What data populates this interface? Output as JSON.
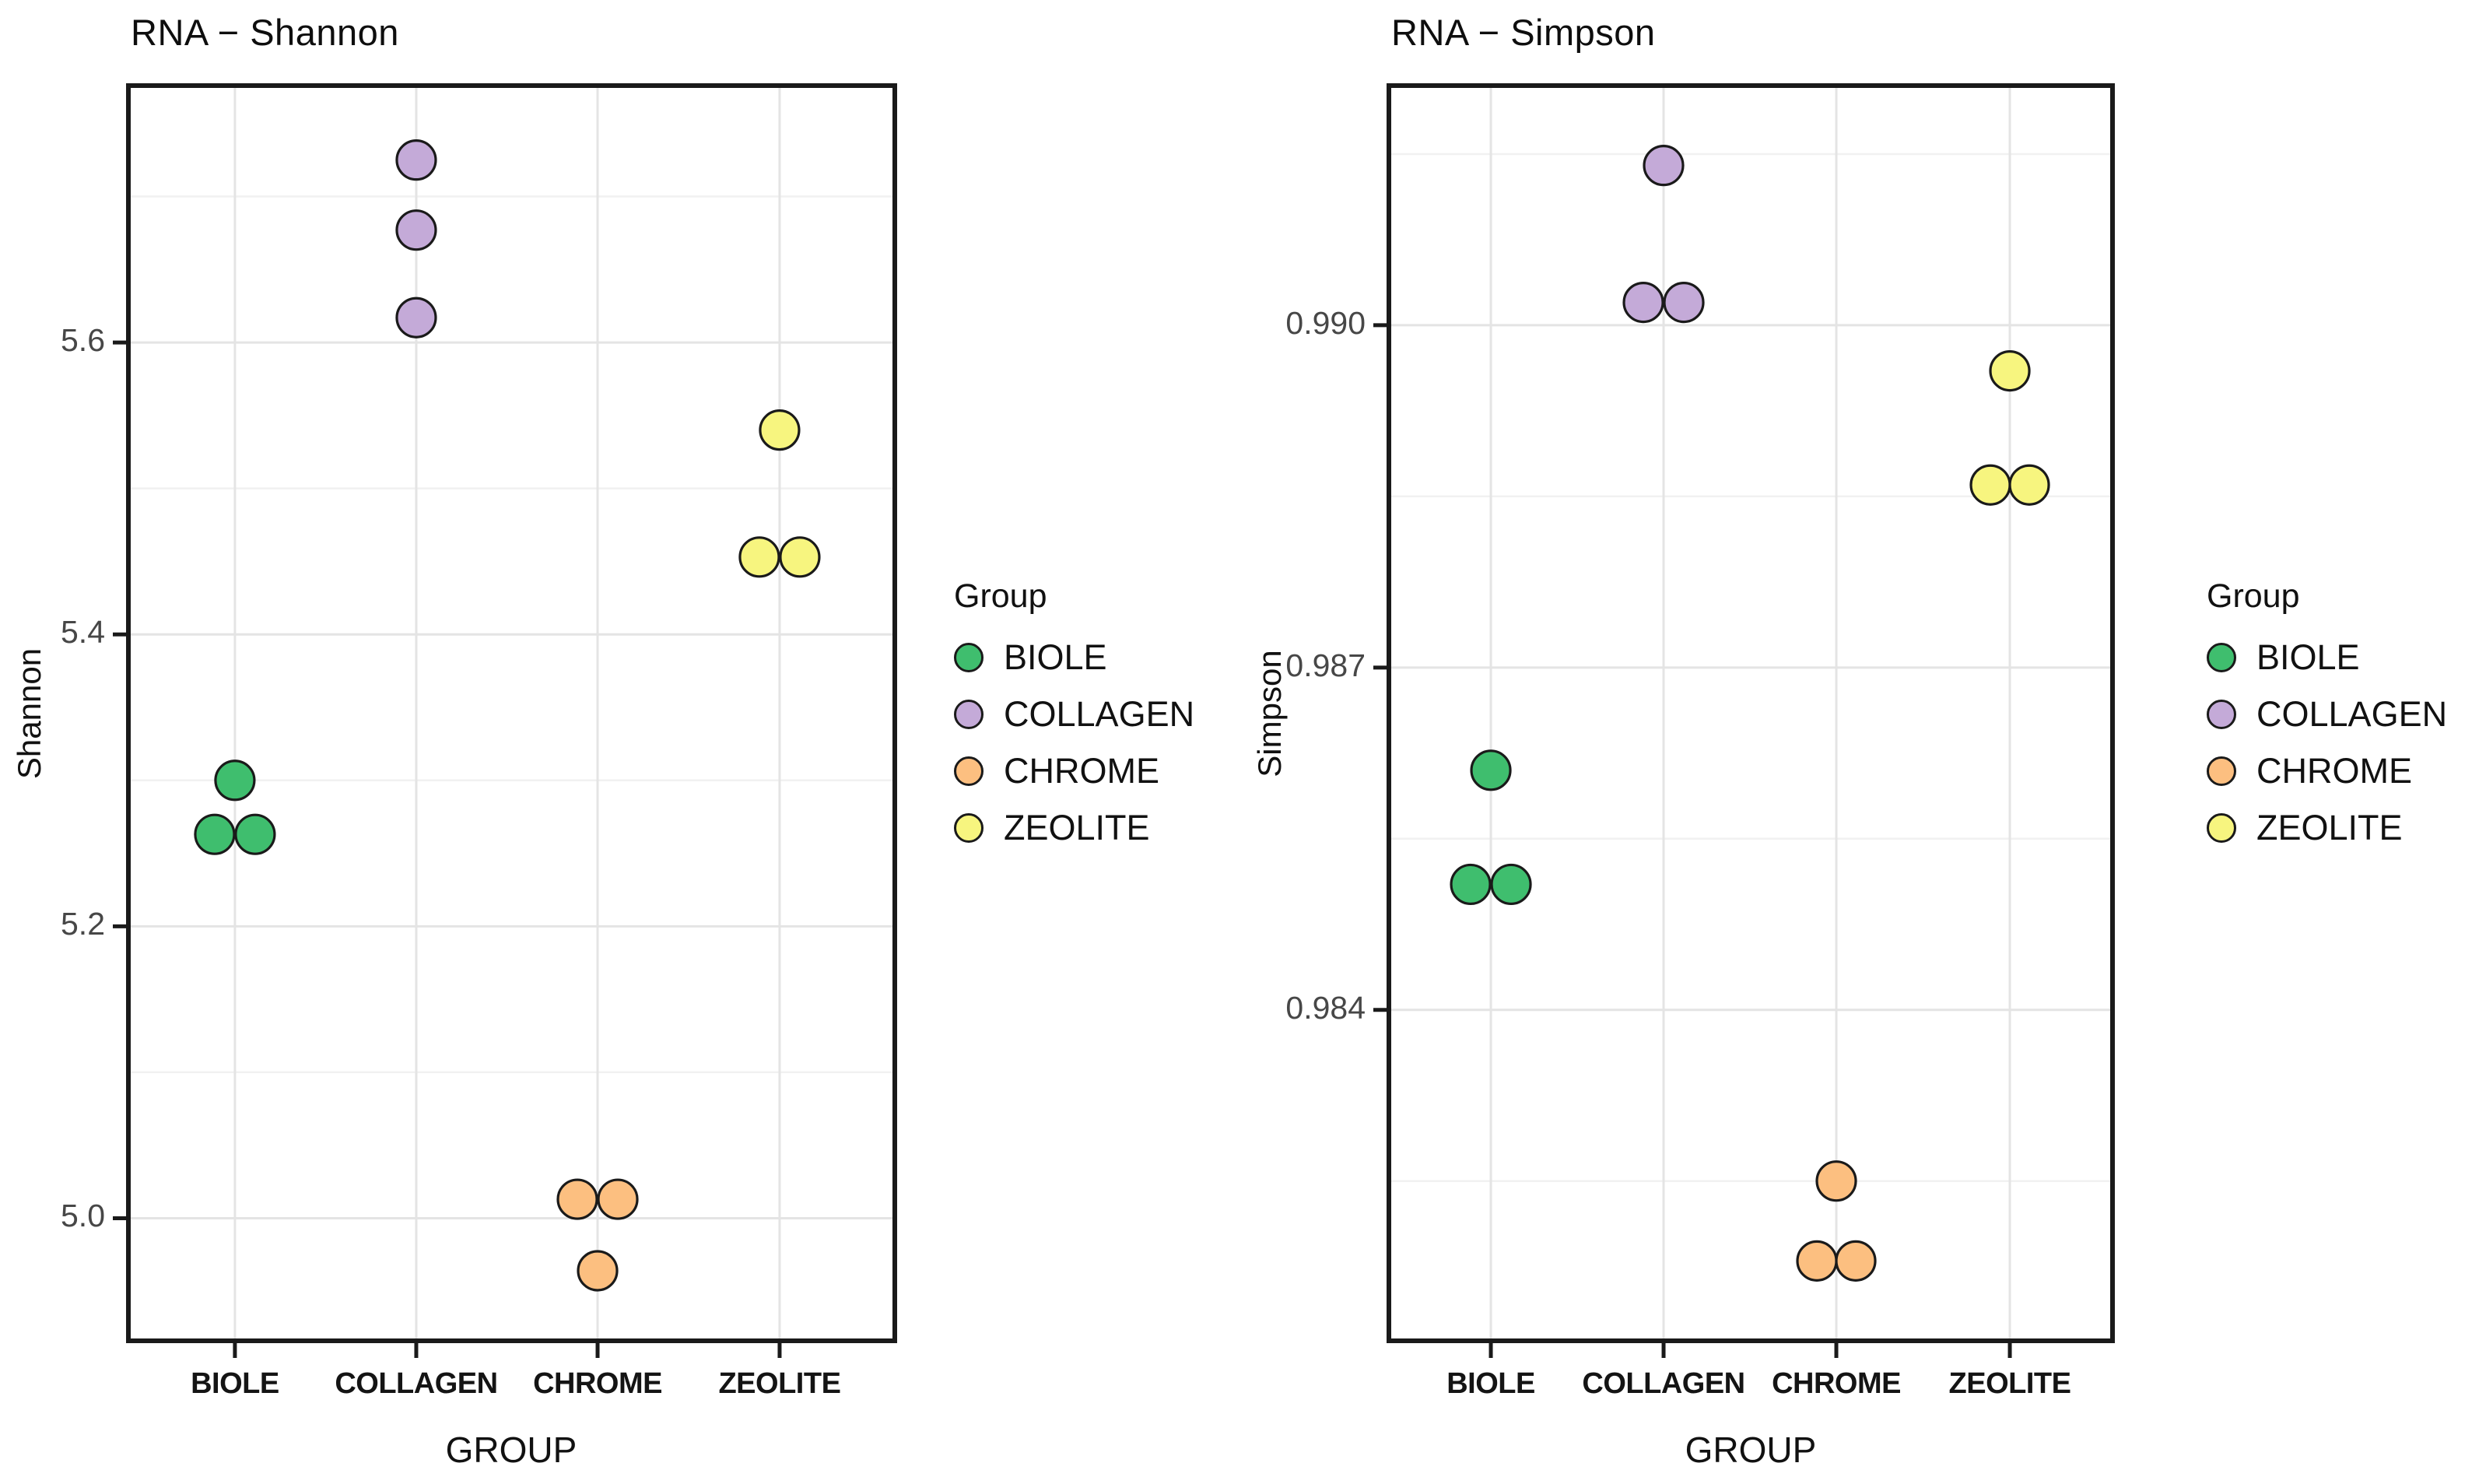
{
  "figure": {
    "background": "#ffffff",
    "panel_border_color": "#1a1a1a",
    "grid_major_color": "#e4e4e4",
    "grid_minor_color": "#f1f1f1",
    "point_stroke": "#1a1a1a",
    "tick_label_color": "#474747"
  },
  "palette": {
    "BIOLE": "#3fbe6e",
    "COLLAGEN": "#c4aad8",
    "CHROME": "#fcbf80",
    "ZEOLITE": "#f7f57f"
  },
  "chart_data": [
    {
      "type": "scatter",
      "title": "RNA − Shannon",
      "xlabel": "GROUP",
      "ylabel": "Shannon",
      "categories": [
        "BIOLE",
        "COLLAGEN",
        "CHROME",
        "ZEOLITE"
      ],
      "ylim": [
        4.916,
        5.776
      ],
      "yticks": [
        5.0,
        5.2,
        5.4,
        5.6
      ],
      "ytick_labels": [
        "5.0",
        "5.2",
        "5.4",
        "5.6"
      ],
      "yminor": [
        5.1,
        5.3,
        5.5,
        5.7
      ],
      "grid": true,
      "legend": {
        "title": "Group",
        "position": "right",
        "items": [
          "BIOLE",
          "COLLAGEN",
          "CHROME",
          "ZEOLITE"
        ]
      },
      "series": [
        {
          "name": "BIOLE",
          "points": [
            {
              "y": 5.3,
              "dx": 0
            },
            {
              "y": 5.263,
              "dx": -26
            },
            {
              "y": 5.263,
              "dx": 26
            }
          ]
        },
        {
          "name": "COLLAGEN",
          "points": [
            {
              "y": 5.725,
              "dx": 0
            },
            {
              "y": 5.677,
              "dx": 0
            },
            {
              "y": 5.617,
              "dx": 0
            }
          ]
        },
        {
          "name": "CHROME",
          "points": [
            {
              "y": 5.013,
              "dx": -26
            },
            {
              "y": 5.013,
              "dx": 26
            },
            {
              "y": 4.964,
              "dx": 0
            }
          ]
        },
        {
          "name": "ZEOLITE",
          "points": [
            {
              "y": 5.54,
              "dx": 0
            },
            {
              "y": 5.453,
              "dx": -26
            },
            {
              "y": 5.453,
              "dx": 26
            }
          ]
        }
      ]
    },
    {
      "type": "scatter",
      "title": "RNA − Simpson",
      "xlabel": "GROUP",
      "ylabel": "Simpson",
      "categories": [
        "BIOLE",
        "COLLAGEN",
        "CHROME",
        "ZEOLITE"
      ],
      "ylim": [
        0.9811,
        0.9921
      ],
      "yticks": [
        0.984,
        0.987,
        0.99
      ],
      "ytick_labels": [
        "0.984",
        "0.987",
        "0.990"
      ],
      "yminor": [
        0.9825,
        0.9855,
        0.9885,
        0.9915
      ],
      "grid": true,
      "legend": {
        "title": "Group",
        "position": "right",
        "items": [
          "BIOLE",
          "COLLAGEN",
          "CHROME",
          "ZEOLITE"
        ]
      },
      "series": [
        {
          "name": "BIOLE",
          "points": [
            {
              "y": 0.9861,
              "dx": 0
            },
            {
              "y": 0.9851,
              "dx": -26
            },
            {
              "y": 0.9851,
              "dx": 26
            }
          ]
        },
        {
          "name": "COLLAGEN",
          "points": [
            {
              "y": 0.9914,
              "dx": 0
            },
            {
              "y": 0.9902,
              "dx": -26
            },
            {
              "y": 0.9902,
              "dx": 26
            }
          ]
        },
        {
          "name": "CHROME",
          "points": [
            {
              "y": 0.9825,
              "dx": 0
            },
            {
              "y": 0.9818,
              "dx": -25
            },
            {
              "y": 0.9818,
              "dx": 25
            }
          ]
        },
        {
          "name": "ZEOLITE",
          "points": [
            {
              "y": 0.9896,
              "dx": 0
            },
            {
              "y": 0.9886,
              "dx": -25
            },
            {
              "y": 0.9886,
              "dx": 25
            }
          ]
        }
      ]
    }
  ]
}
